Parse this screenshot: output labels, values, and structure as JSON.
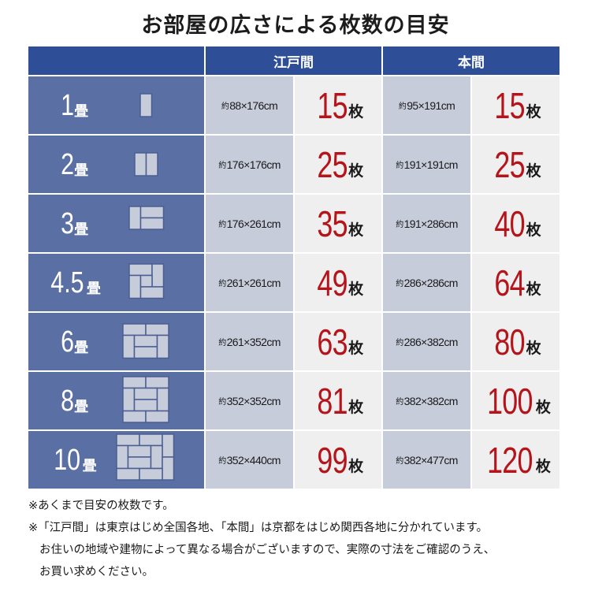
{
  "title": "お部屋の広さによる枚数の目安",
  "header": {
    "left": "",
    "edoma": "江戸間",
    "honma": "本間"
  },
  "unit_label": "枚",
  "jo_label": "畳",
  "yaku_label": "約",
  "rows": [
    {
      "jo": "1",
      "edoma_size": "88×176cm",
      "edoma_count": "15",
      "honma_size": "95×191cm",
      "honma_count": "15"
    },
    {
      "jo": "2",
      "edoma_size": "176×176cm",
      "edoma_count": "25",
      "honma_size": "191×191cm",
      "honma_count": "25"
    },
    {
      "jo": "3",
      "edoma_size": "176×261cm",
      "edoma_count": "35",
      "honma_size": "191×286cm",
      "honma_count": "40"
    },
    {
      "jo": "4.5",
      "edoma_size": "261×261cm",
      "edoma_count": "49",
      "honma_size": "286×286cm",
      "honma_count": "64"
    },
    {
      "jo": "6",
      "edoma_size": "261×352cm",
      "edoma_count": "63",
      "honma_size": "286×382cm",
      "honma_count": "80"
    },
    {
      "jo": "8",
      "edoma_size": "352×352cm",
      "edoma_count": "81",
      "honma_size": "382×382cm",
      "honma_count": "100"
    },
    {
      "jo": "10",
      "edoma_size": "352×440cm",
      "edoma_count": "99",
      "honma_size": "382×477cm",
      "honma_count": "120"
    }
  ],
  "notes": {
    "line1": "※あくまで目安の枚数です。",
    "line2": "※「江戸間」は東京はじめ全国各地、「本間」は京都をはじめ関西各地に分かれています。",
    "line3": "お住いの地域や建物によって異なる場合がございますので、実際の寸法をご確認のうえ、",
    "line4": "お買い求めください。"
  },
  "colors": {
    "header_bg": "#2f4e98",
    "label_bg": "#5a6fa3",
    "size_bg": "#c7ccdb",
    "count_bg": "#efefef",
    "count_text": "#b5141b",
    "tatami": "#c7ccdb"
  }
}
